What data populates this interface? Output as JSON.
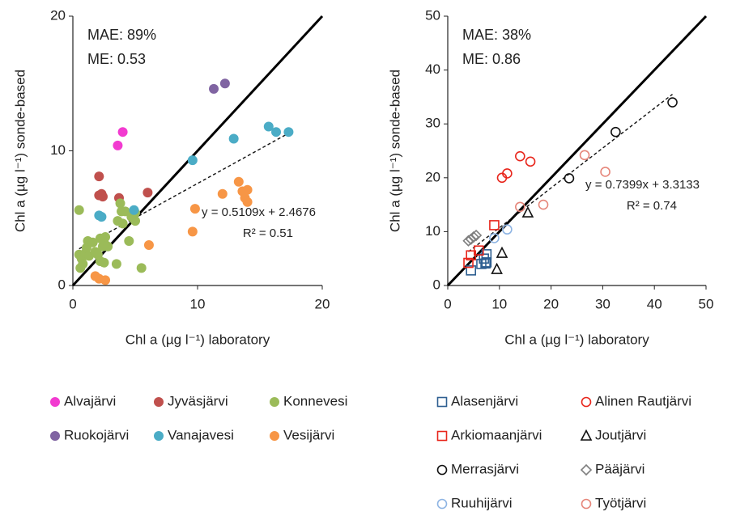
{
  "chart_data": [
    {
      "type": "scatter",
      "xlabel": "Chl a (µg l⁻¹) laboratory",
      "ylabel": "Chl a (µg l⁻¹) sonde-based",
      "annotations": [
        "MAE: 89%",
        "ME: 0.53"
      ],
      "xlim": [
        0,
        20
      ],
      "ylim": [
        0,
        20
      ],
      "xticks": [
        0,
        10,
        20
      ],
      "yticks": [
        0,
        10,
        20
      ],
      "trendline": {
        "equation": "y = 0.5109x + 2.4676",
        "r2_label": "R² = 0.51",
        "slope": 0.5109,
        "intercept": 2.4676
      },
      "series": [
        {
          "name": "Alvajärvi",
          "color": "#f23bd0",
          "marker": "circle",
          "x": [
            3.6,
            4.0
          ],
          "values": [
            10.4,
            11.4
          ]
        },
        {
          "name": "Jyväsjärvi",
          "color": "#c0504d",
          "marker": "circle",
          "x": [
            2.1,
            2.1,
            2.4,
            2.3,
            3.7,
            6.0
          ],
          "values": [
            8.1,
            6.7,
            6.6,
            6.8,
            6.5,
            6.9
          ]
        },
        {
          "name": "Konnevesi",
          "color": "#9bbb59",
          "marker": "circle",
          "x": [
            0.5,
            0.5,
            0.6,
            0.7,
            0.8,
            1.0,
            1.1,
            1.2,
            1.3,
            1.6,
            1.8,
            2.0,
            2.2,
            2.4,
            2.5,
            2.6,
            2.8,
            2.2,
            2.5,
            3.5,
            3.6,
            3.8,
            3.9,
            4.0,
            4.5,
            4.7,
            5.0,
            5.0,
            5.5,
            4.2
          ],
          "values": [
            5.6,
            2.3,
            1.3,
            2.0,
            1.6,
            2.4,
            2.8,
            3.3,
            2.2,
            3.2,
            2.5,
            2.3,
            3.5,
            2.9,
            3.2,
            3.6,
            2.9,
            1.8,
            1.7,
            1.6,
            4.8,
            6.1,
            5.5,
            4.6,
            3.3,
            5.1,
            5.4,
            4.8,
            1.3,
            5.5
          ]
        },
        {
          "name": "Ruokojärvi",
          "color": "#8064a2",
          "marker": "circle",
          "x": [
            11.3,
            12.2
          ],
          "values": [
            14.6,
            15.0
          ]
        },
        {
          "name": "Vanajavesi",
          "color": "#4bacc6",
          "marker": "circle",
          "x": [
            2.1,
            2.3,
            4.9,
            9.6,
            12.9,
            15.7,
            16.3,
            17.3
          ],
          "values": [
            5.2,
            5.1,
            5.6,
            9.3,
            10.9,
            11.8,
            11.4,
            11.4
          ]
        },
        {
          "name": "Vesijärvi",
          "color": "#f79646",
          "marker": "circle",
          "x": [
            1.8,
            2.1,
            2.6,
            6.1,
            9.6,
            9.8,
            12.0,
            13.3,
            13.6,
            13.8,
            14.0,
            14.0
          ],
          "values": [
            0.7,
            0.5,
            0.4,
            3.0,
            4.0,
            5.7,
            6.8,
            7.7,
            7.0,
            6.5,
            7.1,
            6.2
          ]
        }
      ]
    },
    {
      "type": "scatter",
      "xlabel": "Chl a (µg l⁻¹) laboratory",
      "ylabel": "Chl a (µg l⁻¹) sonde-based",
      "annotations": [
        "MAE: 38%",
        "ME: 0.86"
      ],
      "xlim": [
        0,
        50
      ],
      "ylim": [
        0,
        50
      ],
      "xticks": [
        0,
        10,
        20,
        30,
        40,
        50
      ],
      "yticks": [
        0,
        10,
        20,
        30,
        40,
        50
      ],
      "trendline": {
        "equation": "y = 0.7399x + 3.3133",
        "r2_label": "R² = 0.74",
        "slope": 0.7399,
        "intercept": 3.3133
      },
      "series": [
        {
          "name": "Alasenjärvi",
          "color": "#2e5f91",
          "marker": "open-square",
          "x": [
            4.5,
            6.5,
            7.3,
            7.5,
            7.0,
            7.5
          ],
          "values": [
            2.8,
            4.0,
            4.1,
            5.8,
            5.0,
            4.3
          ]
        },
        {
          "name": "Alinen Rautjärvi",
          "color": "#e8261c",
          "marker": "open-circle",
          "x": [
            10.5,
            11.5,
            14.0,
            16.0
          ],
          "values": [
            20.0,
            20.8,
            24.0,
            23.0
          ]
        },
        {
          "name": "Arkiomaanjärvi",
          "color": "#e8261c",
          "marker": "open-square",
          "x": [
            4.0,
            4.5,
            6.0,
            9.0
          ],
          "values": [
            4.2,
            5.6,
            6.5,
            11.2
          ]
        },
        {
          "name": "Joutjärvi",
          "color": "#111111",
          "marker": "open-triangle",
          "x": [
            9.5,
            10.5,
            15.5
          ],
          "values": [
            3.0,
            6.0,
            13.5
          ]
        },
        {
          "name": "Merrasjärvi",
          "color": "#111111",
          "marker": "open-circle",
          "x": [
            23.5,
            32.5,
            43.5
          ],
          "values": [
            19.9,
            28.5,
            34.0
          ]
        },
        {
          "name": "Pääjärvi",
          "color": "#7f7f7f",
          "marker": "open-diamond",
          "x": [
            4.0,
            4.5,
            5.0,
            5.5
          ],
          "values": [
            8.3,
            8.6,
            9.0,
            9.3
          ]
        },
        {
          "name": "Ruuhijärvi",
          "color": "#8eb4e3",
          "marker": "open-circle",
          "x": [
            9.0,
            11.5
          ],
          "values": [
            8.8,
            10.4
          ]
        },
        {
          "name": "Työtjärvi",
          "color": "#e6867a",
          "marker": "open-circle",
          "x": [
            14.0,
            18.5,
            26.5,
            30.5
          ],
          "values": [
            14.6,
            15.0,
            24.2,
            21.1
          ]
        }
      ]
    }
  ]
}
